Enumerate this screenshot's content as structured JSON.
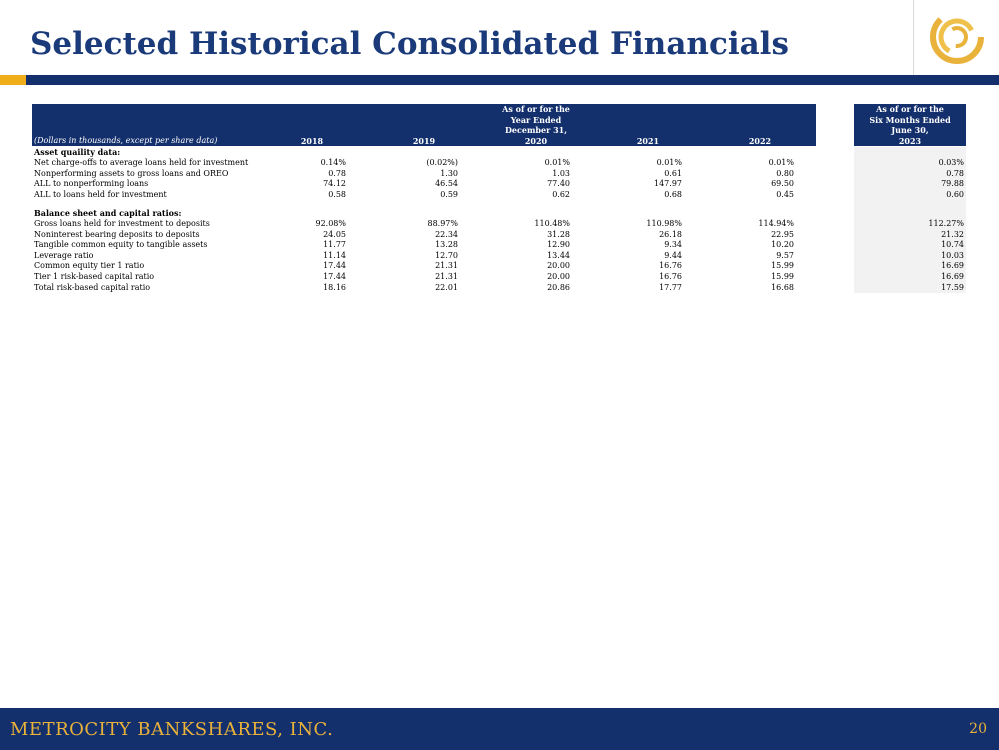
{
  "title": "Selected Historical Consolidated Financials",
  "colors": {
    "navy": "#14306c",
    "gold": "#e9b23a",
    "accent": "#f0ad1a",
    "shade": "#f2f2f2"
  },
  "table": {
    "header_group_years": [
      "As of or for the",
      "Year Ended",
      "December 31,"
    ],
    "header_group_six": [
      "As of or for the",
      "Six Months Ended",
      "June 30,"
    ],
    "units_label": "(Dollars in thousands, except per share data)",
    "years": [
      "2018",
      "2019",
      "2020",
      "2021",
      "2022",
      "2023"
    ],
    "sections": [
      {
        "heading": "Asset quaility data:",
        "rows": [
          {
            "label": "Net charge-offs to average loans held for investment",
            "values": [
              "0.14%",
              "(0.02%)",
              "0.01%",
              "0.01%",
              "0.01%",
              "0.03%"
            ]
          },
          {
            "label": "Nonperforming assets to gross loans and OREO",
            "values": [
              "0.78",
              "1.30",
              "1.03",
              "0.61",
              "0.80",
              "0.78"
            ]
          },
          {
            "label": "ALL to nonperforming loans",
            "values": [
              "74.12",
              "46.54",
              "77.40",
              "147.97",
              "69.50",
              "79.88"
            ]
          },
          {
            "label": "ALL to loans held for investment",
            "values": [
              "0.58",
              "0.59",
              "0.62",
              "0.68",
              "0.45",
              "0.60"
            ]
          }
        ]
      },
      {
        "heading": "Balance sheet and capital ratios:",
        "rows": [
          {
            "label": "Gross loans held for investment to deposits",
            "values": [
              "92.08%",
              "88.97%",
              "110.48%",
              "110.98%",
              "114.94%",
              "112.27%"
            ]
          },
          {
            "label": "Noninterest bearing deposits to deposits",
            "values": [
              "24.05",
              "22.34",
              "31.28",
              "26.18",
              "22.95",
              "21.32"
            ]
          },
          {
            "label": "Tangible common equity to tangible assets",
            "values": [
              "11.77",
              "13.28",
              "12.90",
              "9.34",
              "10.20",
              "10.74"
            ]
          },
          {
            "label": "Leverage ratio",
            "values": [
              "11.14",
              "12.70",
              "13.44",
              "9.44",
              "9.57",
              "10.03"
            ]
          },
          {
            "label": "Common equity tier 1 ratio",
            "values": [
              "17.44",
              "21.31",
              "20.00",
              "16.76",
              "15.99",
              "16.69"
            ]
          },
          {
            "label": "Tier 1 risk-based capital ratio",
            "values": [
              "17.44",
              "21.31",
              "20.00",
              "16.76",
              "15.99",
              "16.69"
            ]
          },
          {
            "label": "Total risk-based capital ratio",
            "values": [
              "18.16",
              "22.01",
              "20.86",
              "17.77",
              "16.68",
              "17.59"
            ]
          }
        ]
      }
    ]
  },
  "footer": {
    "company": "METROCITY BANKSHARES, INC.",
    "page_number": "20"
  }
}
